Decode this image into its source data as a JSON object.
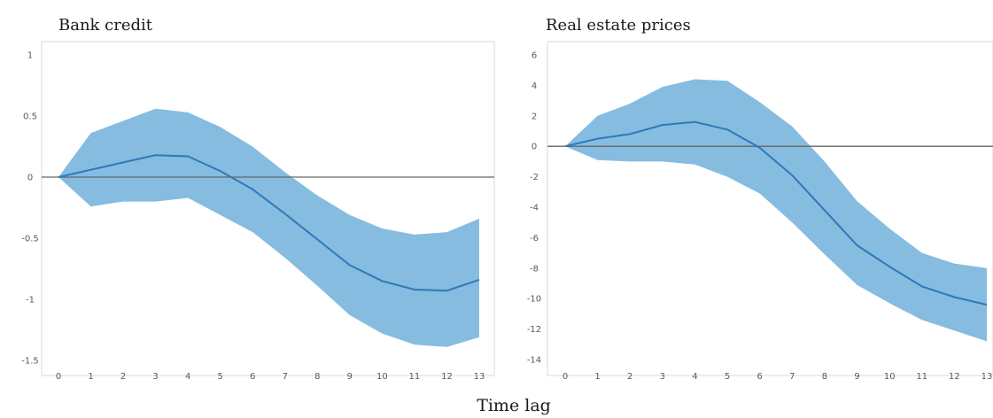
{
  "figure": {
    "xlabel": "Time lag"
  },
  "colors": {
    "band": "#5ea6d6",
    "line": "#2e79b8",
    "zero_line": "#666666",
    "frame": "#d9d9d9"
  },
  "chart_data": [
    {
      "type": "area",
      "title": "Bank credit",
      "xlabel": "",
      "ylabel": "",
      "x": [
        0,
        1,
        2,
        3,
        4,
        5,
        6,
        7,
        8,
        9,
        10,
        11,
        12,
        13
      ],
      "ylim": [
        -1.5,
        1
      ],
      "yticks": [
        1,
        0.5,
        0,
        -0.5,
        -1,
        -1.5
      ],
      "ytick_labels": [
        "1",
        "0.5",
        "0",
        "-0.5",
        "-1",
        "-1.5"
      ],
      "grid": false,
      "series": [
        {
          "role": "estimate",
          "values": [
            0,
            0.06,
            0.12,
            0.18,
            0.17,
            0.05,
            -0.1,
            -0.3,
            -0.51,
            -0.72,
            -0.85,
            -0.92,
            -0.93,
            -0.84
          ]
        },
        {
          "role": "upper_bound",
          "values": [
            0,
            0.36,
            0.46,
            0.56,
            0.53,
            0.41,
            0.25,
            0.04,
            -0.15,
            -0.31,
            -0.42,
            -0.47,
            -0.45,
            -0.34
          ]
        },
        {
          "role": "lower_bound",
          "values": [
            0,
            -0.24,
            -0.2,
            -0.2,
            -0.17,
            -0.31,
            -0.45,
            -0.66,
            -0.89,
            -1.13,
            -1.28,
            -1.37,
            -1.39,
            -1.31
          ]
        }
      ]
    },
    {
      "type": "area",
      "title": "Real estate prices",
      "xlabel": "",
      "ylabel": "",
      "x": [
        0,
        1,
        2,
        3,
        4,
        5,
        6,
        7,
        8,
        9,
        10,
        11,
        12,
        13
      ],
      "ylim": [
        -14,
        6
      ],
      "yticks": [
        6,
        4,
        2,
        0,
        -2,
        -4,
        -6,
        -8,
        -10,
        -12,
        -14
      ],
      "ytick_labels": [
        "6",
        "4",
        "2",
        "0",
        "-2",
        "-4",
        "-6",
        "-8",
        "-10",
        "-12",
        "-14"
      ],
      "grid": false,
      "series": [
        {
          "role": "estimate",
          "values": [
            0,
            0.5,
            0.8,
            1.4,
            1.6,
            1.1,
            -0.1,
            -1.9,
            -4.2,
            -6.5,
            -7.9,
            -9.2,
            -9.9,
            -10.4
          ]
        },
        {
          "role": "upper_bound",
          "values": [
            0,
            2.0,
            2.8,
            3.9,
            4.4,
            4.3,
            2.9,
            1.3,
            -1.0,
            -3.6,
            -5.4,
            -7.0,
            -7.7,
            -8.0
          ]
        },
        {
          "role": "lower_bound",
          "values": [
            0,
            -0.9,
            -1.0,
            -1.0,
            -1.2,
            -2.0,
            -3.1,
            -5.0,
            -7.1,
            -9.1,
            -10.3,
            -11.4,
            -12.1,
            -12.8
          ]
        }
      ]
    }
  ]
}
